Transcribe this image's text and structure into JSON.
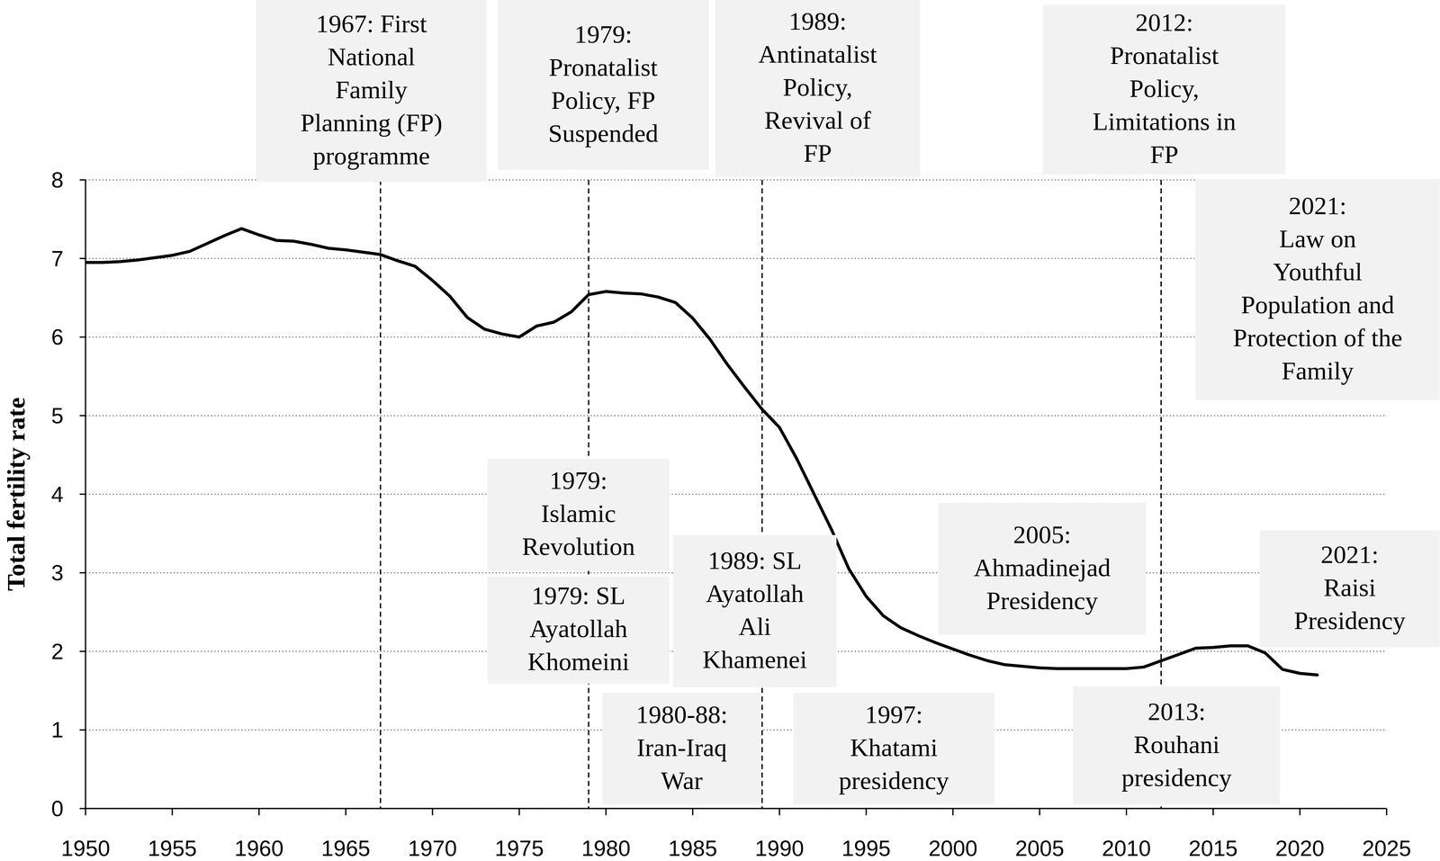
{
  "chart_data": {
    "type": "line",
    "ylabel": "Total fertility rate",
    "x": [
      1950,
      1951,
      1952,
      1953,
      1954,
      1955,
      1956,
      1957,
      1958,
      1959,
      1960,
      1961,
      1962,
      1963,
      1964,
      1965,
      1966,
      1967,
      1968,
      1969,
      1970,
      1971,
      1972,
      1973,
      1974,
      1975,
      1976,
      1977,
      1978,
      1979,
      1980,
      1981,
      1982,
      1983,
      1984,
      1985,
      1986,
      1987,
      1988,
      1989,
      1990,
      1991,
      1992,
      1993,
      1994,
      1995,
      1996,
      1997,
      1998,
      1999,
      2000,
      2001,
      2002,
      2003,
      2004,
      2005,
      2006,
      2007,
      2008,
      2009,
      2010,
      2011,
      2012,
      2013,
      2014,
      2015,
      2016,
      2017,
      2018,
      2019,
      2020,
      2021
    ],
    "values": [
      6.95,
      6.95,
      6.96,
      6.98,
      7.01,
      7.04,
      7.09,
      7.19,
      7.29,
      7.38,
      7.3,
      7.23,
      7.22,
      7.18,
      7.13,
      7.11,
      7.08,
      7.05,
      6.97,
      6.9,
      6.72,
      6.52,
      6.25,
      6.1,
      6.04,
      6.0,
      6.14,
      6.19,
      6.32,
      6.54,
      6.58,
      6.56,
      6.55,
      6.51,
      6.44,
      6.24,
      5.97,
      5.65,
      5.36,
      5.08,
      4.85,
      4.45,
      4.0,
      3.55,
      3.05,
      2.7,
      2.45,
      2.3,
      2.2,
      2.11,
      2.03,
      1.95,
      1.88,
      1.83,
      1.81,
      1.79,
      1.78,
      1.78,
      1.78,
      1.78,
      1.78,
      1.8,
      1.88,
      1.96,
      2.04,
      2.05,
      2.07,
      2.07,
      1.98,
      1.77,
      1.72,
      1.7
    ],
    "color": "#000000",
    "xlim": [
      1950,
      2025
    ],
    "xticks": [
      1950,
      1955,
      1960,
      1965,
      1970,
      1975,
      1980,
      1985,
      1990,
      1995,
      2000,
      2005,
      2010,
      2015,
      2020,
      2025
    ],
    "ylim": [
      0,
      8
    ],
    "yticks": [
      0,
      1,
      2,
      3,
      4,
      5,
      6,
      7,
      8
    ],
    "grid": true,
    "annotations": [
      {
        "text": [
          "1967: First",
          "National",
          "Family",
          "Planning (FP)",
          "programme"
        ],
        "x": 1967
      },
      {
        "text": [
          "1979:",
          "Pronatalist",
          "Policy, FP",
          "Suspended"
        ],
        "x": 1979
      },
      {
        "text": [
          "1989:",
          "Antinatalist",
          "Policy,",
          "Revival of",
          "FP"
        ],
        "x": 1989
      },
      {
        "text": [
          "2012:",
          "Pronatalist",
          "Policy,",
          "Limitations in",
          "FP"
        ],
        "x": 2012
      },
      {
        "text": [
          "2021:",
          "Law on",
          "Youthful",
          "Population and",
          "Protection of the",
          "Family"
        ]
      },
      {
        "text": [
          "1979:",
          "Islamic",
          "Revolution"
        ]
      },
      {
        "text": [
          "1979: SL",
          "Ayatollah",
          "Khomeini"
        ]
      },
      {
        "text": [
          "1989: SL",
          "Ayatollah",
          "Ali",
          "Khamenei"
        ]
      },
      {
        "text": [
          "1980-88:",
          "Iran-Iraq",
          "War"
        ]
      },
      {
        "text": [
          "1997:",
          "Khatami",
          "presidency"
        ]
      },
      {
        "text": [
          "2005:",
          "Ahmadinejad",
          "Presidency"
        ]
      },
      {
        "text": [
          "2013:",
          "Rouhani",
          "presidency"
        ]
      },
      {
        "text": [
          "2021:",
          "Raisi",
          "Presidency"
        ]
      }
    ]
  }
}
